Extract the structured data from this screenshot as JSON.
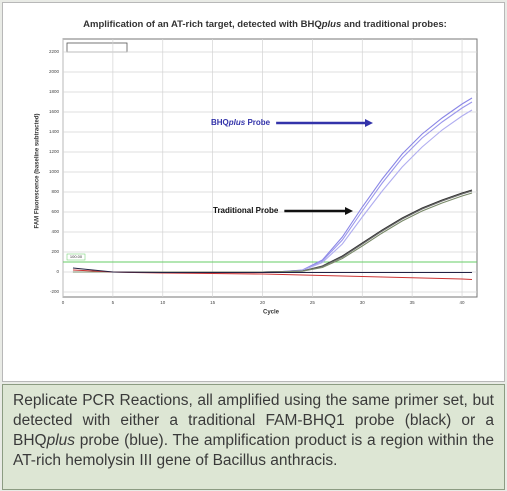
{
  "chart_data": {
    "type": "line",
    "title": [
      "Amplification of an AT-rich target, detected with BHQ",
      "plus",
      " and traditional probes:"
    ],
    "xlabel": "Cycle",
    "ylabel": "FAM Fluorescence (baseline subtracted)",
    "x": [
      1,
      5,
      10,
      15,
      20,
      22,
      24,
      26,
      28,
      30,
      32,
      34,
      36,
      38,
      40,
      41
    ],
    "series": [
      {
        "color": "#8a86e6",
        "values": [
          0,
          0,
          0,
          0,
          0,
          5,
          20,
          120,
          350,
          650,
          930,
          1180,
          1380,
          1540,
          1680,
          1740
        ]
      },
      {
        "color": "#9b97ec",
        "values": [
          0,
          0,
          0,
          0,
          0,
          5,
          18,
          110,
          320,
          610,
          890,
          1140,
          1340,
          1500,
          1640,
          1700
        ]
      },
      {
        "color": "#b0adf0",
        "values": [
          0,
          0,
          0,
          0,
          0,
          4,
          15,
          95,
          280,
          550,
          810,
          1050,
          1250,
          1420,
          1560,
          1620
        ]
      },
      {
        "color": "#333333",
        "values": [
          0,
          0,
          0,
          0,
          0,
          3,
          10,
          60,
          160,
          290,
          420,
          540,
          640,
          720,
          790,
          820
        ]
      },
      {
        "color": "#666666",
        "values": [
          0,
          0,
          0,
          0,
          0,
          3,
          9,
          55,
          150,
          280,
          410,
          530,
          630,
          710,
          780,
          810
        ]
      },
      {
        "color": "#7a8a6a",
        "values": [
          0,
          0,
          0,
          0,
          0,
          2,
          8,
          45,
          135,
          260,
          390,
          510,
          610,
          690,
          760,
          790
        ]
      },
      {
        "color": "#cc3333",
        "values": [
          20,
          0,
          -10,
          -15,
          -20,
          -25,
          -30,
          -35,
          -40,
          -45,
          -50,
          -55,
          -60,
          -65,
          -70,
          -75
        ]
      },
      {
        "color": "#222244",
        "values": [
          40,
          0,
          -5,
          -5,
          -5,
          -5,
          -5,
          -5,
          -5,
          -5,
          -5,
          -5,
          -5,
          -5,
          -5,
          -5
        ]
      }
    ],
    "xlim": [
      0,
      41.5
    ],
    "ylim": [
      -250,
      2330
    ],
    "xticks": [
      0,
      5,
      10,
      15,
      20,
      25,
      30,
      35,
      40
    ],
    "yticks": [
      -200,
      0,
      200,
      400,
      600,
      800,
      1000,
      1200,
      1400,
      1600,
      1800,
      2000,
      2200
    ],
    "grid": true,
    "threshold": {
      "value": 100,
      "label": "100.00",
      "color": "#66cc66"
    },
    "annotations": [
      {
        "text": [
          "BHQ",
          "plus",
          " Probe"
        ],
        "color": "#3333aa"
      },
      {
        "text": [
          "Traditional Probe"
        ],
        "color": "#111111"
      }
    ]
  },
  "caption": [
    "Replicate PCR Reactions, all amplified using the same primer set, but detected with either a traditional FAM-BHQ1 probe (black) or a BHQ",
    "plus",
    " probe (blue).  The amplification product is a region within the AT-rich hemolysin III gene of Bacillus anthracis."
  ]
}
